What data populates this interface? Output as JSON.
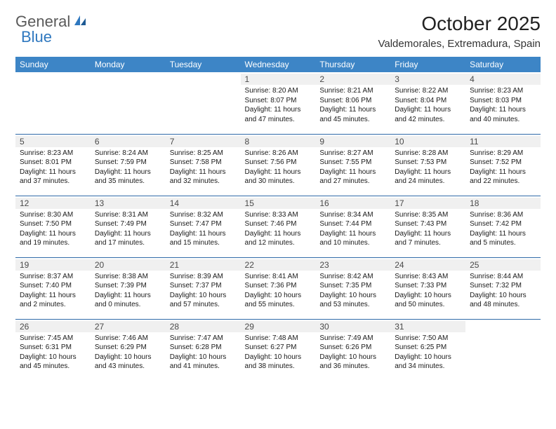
{
  "logo": {
    "text_general": "General",
    "text_blue": "Blue"
  },
  "header": {
    "month_title": "October 2025",
    "location": "Valdemorales, Extremadura, Spain"
  },
  "styling": {
    "header_bg": "#3d85c6",
    "header_text": "#ffffff",
    "row_divider": "#2f6aa8",
    "daynum_bg": "#f0f0f0",
    "body_text": "#1a1a1a",
    "logo_gray": "#5a5a5a",
    "logo_blue": "#2f78bf",
    "cell_fontsize": 10,
    "header_fontsize": 12,
    "title_fontsize": 28
  },
  "days_of_week": [
    "Sunday",
    "Monday",
    "Tuesday",
    "Wednesday",
    "Thursday",
    "Friday",
    "Saturday"
  ],
  "weeks": [
    [
      null,
      null,
      null,
      {
        "n": "1",
        "sunrise": "Sunrise: 8:20 AM",
        "sunset": "Sunset: 8:07 PM",
        "dl1": "Daylight: 11 hours",
        "dl2": "and 47 minutes."
      },
      {
        "n": "2",
        "sunrise": "Sunrise: 8:21 AM",
        "sunset": "Sunset: 8:06 PM",
        "dl1": "Daylight: 11 hours",
        "dl2": "and 45 minutes."
      },
      {
        "n": "3",
        "sunrise": "Sunrise: 8:22 AM",
        "sunset": "Sunset: 8:04 PM",
        "dl1": "Daylight: 11 hours",
        "dl2": "and 42 minutes."
      },
      {
        "n": "4",
        "sunrise": "Sunrise: 8:23 AM",
        "sunset": "Sunset: 8:03 PM",
        "dl1": "Daylight: 11 hours",
        "dl2": "and 40 minutes."
      }
    ],
    [
      {
        "n": "5",
        "sunrise": "Sunrise: 8:23 AM",
        "sunset": "Sunset: 8:01 PM",
        "dl1": "Daylight: 11 hours",
        "dl2": "and 37 minutes."
      },
      {
        "n": "6",
        "sunrise": "Sunrise: 8:24 AM",
        "sunset": "Sunset: 7:59 PM",
        "dl1": "Daylight: 11 hours",
        "dl2": "and 35 minutes."
      },
      {
        "n": "7",
        "sunrise": "Sunrise: 8:25 AM",
        "sunset": "Sunset: 7:58 PM",
        "dl1": "Daylight: 11 hours",
        "dl2": "and 32 minutes."
      },
      {
        "n": "8",
        "sunrise": "Sunrise: 8:26 AM",
        "sunset": "Sunset: 7:56 PM",
        "dl1": "Daylight: 11 hours",
        "dl2": "and 30 minutes."
      },
      {
        "n": "9",
        "sunrise": "Sunrise: 8:27 AM",
        "sunset": "Sunset: 7:55 PM",
        "dl1": "Daylight: 11 hours",
        "dl2": "and 27 minutes."
      },
      {
        "n": "10",
        "sunrise": "Sunrise: 8:28 AM",
        "sunset": "Sunset: 7:53 PM",
        "dl1": "Daylight: 11 hours",
        "dl2": "and 24 minutes."
      },
      {
        "n": "11",
        "sunrise": "Sunrise: 8:29 AM",
        "sunset": "Sunset: 7:52 PM",
        "dl1": "Daylight: 11 hours",
        "dl2": "and 22 minutes."
      }
    ],
    [
      {
        "n": "12",
        "sunrise": "Sunrise: 8:30 AM",
        "sunset": "Sunset: 7:50 PM",
        "dl1": "Daylight: 11 hours",
        "dl2": "and 19 minutes."
      },
      {
        "n": "13",
        "sunrise": "Sunrise: 8:31 AM",
        "sunset": "Sunset: 7:49 PM",
        "dl1": "Daylight: 11 hours",
        "dl2": "and 17 minutes."
      },
      {
        "n": "14",
        "sunrise": "Sunrise: 8:32 AM",
        "sunset": "Sunset: 7:47 PM",
        "dl1": "Daylight: 11 hours",
        "dl2": "and 15 minutes."
      },
      {
        "n": "15",
        "sunrise": "Sunrise: 8:33 AM",
        "sunset": "Sunset: 7:46 PM",
        "dl1": "Daylight: 11 hours",
        "dl2": "and 12 minutes."
      },
      {
        "n": "16",
        "sunrise": "Sunrise: 8:34 AM",
        "sunset": "Sunset: 7:44 PM",
        "dl1": "Daylight: 11 hours",
        "dl2": "and 10 minutes."
      },
      {
        "n": "17",
        "sunrise": "Sunrise: 8:35 AM",
        "sunset": "Sunset: 7:43 PM",
        "dl1": "Daylight: 11 hours",
        "dl2": "and 7 minutes."
      },
      {
        "n": "18",
        "sunrise": "Sunrise: 8:36 AM",
        "sunset": "Sunset: 7:42 PM",
        "dl1": "Daylight: 11 hours",
        "dl2": "and 5 minutes."
      }
    ],
    [
      {
        "n": "19",
        "sunrise": "Sunrise: 8:37 AM",
        "sunset": "Sunset: 7:40 PM",
        "dl1": "Daylight: 11 hours",
        "dl2": "and 2 minutes."
      },
      {
        "n": "20",
        "sunrise": "Sunrise: 8:38 AM",
        "sunset": "Sunset: 7:39 PM",
        "dl1": "Daylight: 11 hours",
        "dl2": "and 0 minutes."
      },
      {
        "n": "21",
        "sunrise": "Sunrise: 8:39 AM",
        "sunset": "Sunset: 7:37 PM",
        "dl1": "Daylight: 10 hours",
        "dl2": "and 57 minutes."
      },
      {
        "n": "22",
        "sunrise": "Sunrise: 8:41 AM",
        "sunset": "Sunset: 7:36 PM",
        "dl1": "Daylight: 10 hours",
        "dl2": "and 55 minutes."
      },
      {
        "n": "23",
        "sunrise": "Sunrise: 8:42 AM",
        "sunset": "Sunset: 7:35 PM",
        "dl1": "Daylight: 10 hours",
        "dl2": "and 53 minutes."
      },
      {
        "n": "24",
        "sunrise": "Sunrise: 8:43 AM",
        "sunset": "Sunset: 7:33 PM",
        "dl1": "Daylight: 10 hours",
        "dl2": "and 50 minutes."
      },
      {
        "n": "25",
        "sunrise": "Sunrise: 8:44 AM",
        "sunset": "Sunset: 7:32 PM",
        "dl1": "Daylight: 10 hours",
        "dl2": "and 48 minutes."
      }
    ],
    [
      {
        "n": "26",
        "sunrise": "Sunrise: 7:45 AM",
        "sunset": "Sunset: 6:31 PM",
        "dl1": "Daylight: 10 hours",
        "dl2": "and 45 minutes."
      },
      {
        "n": "27",
        "sunrise": "Sunrise: 7:46 AM",
        "sunset": "Sunset: 6:29 PM",
        "dl1": "Daylight: 10 hours",
        "dl2": "and 43 minutes."
      },
      {
        "n": "28",
        "sunrise": "Sunrise: 7:47 AM",
        "sunset": "Sunset: 6:28 PM",
        "dl1": "Daylight: 10 hours",
        "dl2": "and 41 minutes."
      },
      {
        "n": "29",
        "sunrise": "Sunrise: 7:48 AM",
        "sunset": "Sunset: 6:27 PM",
        "dl1": "Daylight: 10 hours",
        "dl2": "and 38 minutes."
      },
      {
        "n": "30",
        "sunrise": "Sunrise: 7:49 AM",
        "sunset": "Sunset: 6:26 PM",
        "dl1": "Daylight: 10 hours",
        "dl2": "and 36 minutes."
      },
      {
        "n": "31",
        "sunrise": "Sunrise: 7:50 AM",
        "sunset": "Sunset: 6:25 PM",
        "dl1": "Daylight: 10 hours",
        "dl2": "and 34 minutes."
      },
      null
    ]
  ]
}
